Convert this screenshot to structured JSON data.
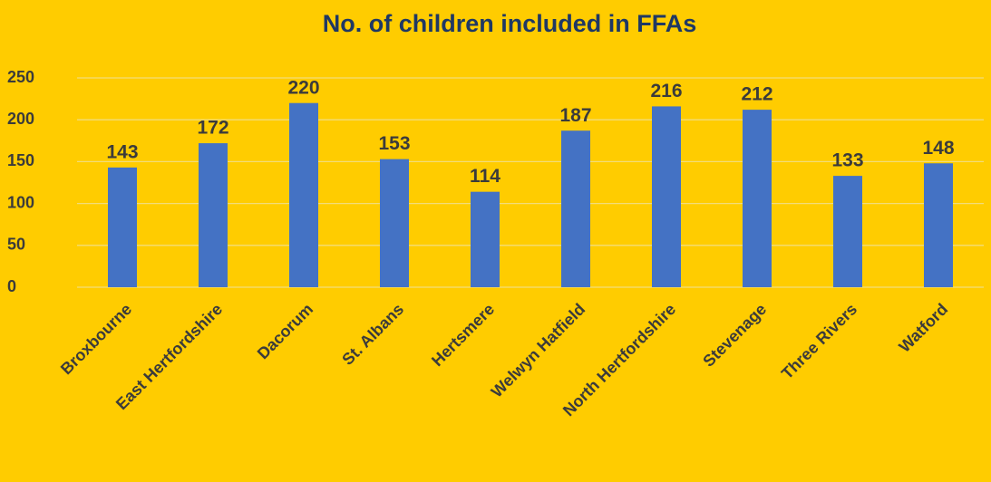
{
  "chart_data": {
    "type": "bar",
    "title": "No. of children included in FFAs",
    "categories": [
      "Broxbourne",
      "East Hertfordshire",
      "Dacorum",
      "St. Albans",
      "Hertsmere",
      "Welwyn Hatfield",
      "North Hertfordshire",
      "Stevenage",
      "Three Rivers",
      "Watford"
    ],
    "values": [
      143,
      172,
      220,
      153,
      114,
      187,
      216,
      212,
      133,
      148
    ],
    "color": "#4472c4",
    "ylim": [
      0,
      250
    ],
    "yticks": [
      0,
      50,
      100,
      150,
      200,
      250
    ],
    "grid": true
  }
}
